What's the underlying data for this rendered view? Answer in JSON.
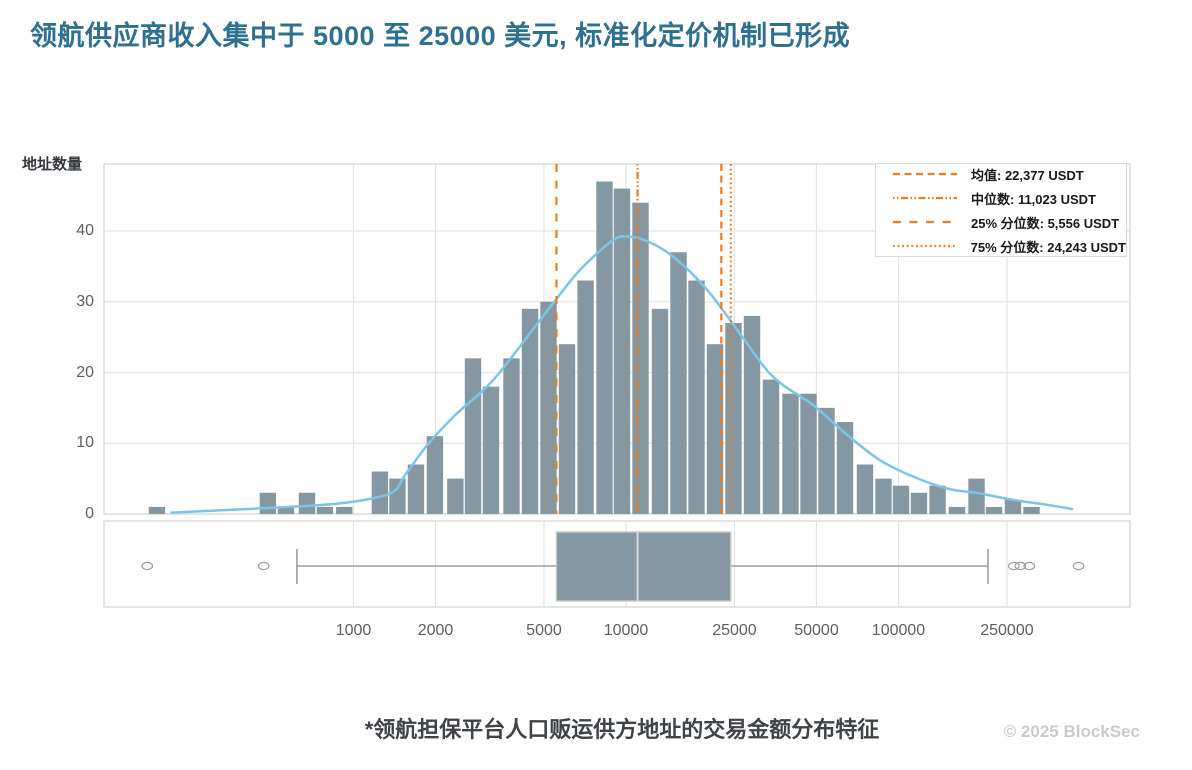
{
  "title": "领航供应商收入集中于 5000 至 25000 美元, 标准化定价机制已形成",
  "footer": {
    "note": "*领航担保平台人口贩运供方地址的交易金额分布特征",
    "copyright": "© 2025 BlockSec"
  },
  "colors": {
    "title": "#2E7090",
    "bar": "#8598A1",
    "kde": "#7CC4E6",
    "accent": "#EE7C1E",
    "grid": "#E4E4E4",
    "border": "#D9D9D9",
    "tick": "#5B5F63",
    "whisker": "#9AA0A3",
    "box_border": "#C9C9C9",
    "median_line": "#D9D9D9",
    "footnote": "#3F4347",
    "muted": "#C7CBCF"
  },
  "chart_data": {
    "type": "bar",
    "subtype": "histogram-with-kde-and-boxplot",
    "title": "领航供应商收入集中于 5000 至 25000 美元, 标准化定价机制已形成",
    "xlabel": "",
    "ylabel": "地址数量",
    "x_scale": "log",
    "xlim": [
      120,
      710000
    ],
    "ylim": [
      0,
      49.5
    ],
    "grid": true,
    "legend_position": "upper right",
    "x_ticks": [
      1000,
      2000,
      5000,
      10000,
      25000,
      50000,
      100000,
      250000
    ],
    "y_ticks": [
      0,
      10,
      20,
      30,
      40
    ],
    "bins": [
      {
        "usd": 190,
        "count": 1
      },
      {
        "usd": 485,
        "count": 3
      },
      {
        "usd": 565,
        "count": 1
      },
      {
        "usd": 675,
        "count": 3
      },
      {
        "usd": 785,
        "count": 1
      },
      {
        "usd": 925,
        "count": 1
      },
      {
        "usd": 1250,
        "count": 6
      },
      {
        "usd": 1450,
        "count": 5
      },
      {
        "usd": 1695,
        "count": 7
      },
      {
        "usd": 1990,
        "count": 11
      },
      {
        "usd": 2365,
        "count": 5
      },
      {
        "usd": 2745,
        "count": 22
      },
      {
        "usd": 3195,
        "count": 18
      },
      {
        "usd": 3800,
        "count": 22
      },
      {
        "usd": 4445,
        "count": 29
      },
      {
        "usd": 5195,
        "count": 30
      },
      {
        "usd": 6075,
        "count": 24
      },
      {
        "usd": 7105,
        "count": 33
      },
      {
        "usd": 8340,
        "count": 47
      },
      {
        "usd": 9665,
        "count": 46
      },
      {
        "usd": 11305,
        "count": 44
      },
      {
        "usd": 13325,
        "count": 29
      },
      {
        "usd": 15585,
        "count": 37
      },
      {
        "usd": 18145,
        "count": 33
      },
      {
        "usd": 21215,
        "count": 24
      },
      {
        "usd": 24800,
        "count": 27
      },
      {
        "usd": 29000,
        "count": 28
      },
      {
        "usd": 34050,
        "count": 19
      },
      {
        "usd": 40150,
        "count": 17
      },
      {
        "usd": 46740,
        "count": 17
      },
      {
        "usd": 54425,
        "count": 15
      },
      {
        "usd": 63640,
        "count": 13
      },
      {
        "usd": 75350,
        "count": 7
      },
      {
        "usd": 88080,
        "count": 5
      },
      {
        "usd": 102140,
        "count": 4
      },
      {
        "usd": 118900,
        "count": 3
      },
      {
        "usd": 139060,
        "count": 4
      },
      {
        "usd": 163965,
        "count": 1
      },
      {
        "usd": 193330,
        "count": 5
      },
      {
        "usd": 224130,
        "count": 1
      },
      {
        "usd": 263150,
        "count": 2
      },
      {
        "usd": 307670,
        "count": 1
      }
    ],
    "kde": [
      [
        215,
        0.2
      ],
      [
        455,
        0.8
      ],
      [
        890,
        1.5
      ],
      [
        1360,
        2.9
      ],
      [
        1545,
        5.5
      ],
      [
        1870,
        9.8
      ],
      [
        2365,
        14.0
      ],
      [
        3250,
        18.9
      ],
      [
        4835,
        27.4
      ],
      [
        5535,
        30.3
      ],
      [
        6780,
        34.5
      ],
      [
        8960,
        38.7
      ],
      [
        10200,
        39.2
      ],
      [
        11900,
        38.6
      ],
      [
        14875,
        36.4
      ],
      [
        19825,
        31.7
      ],
      [
        26200,
        25.5
      ],
      [
        34625,
        19.4
      ],
      [
        48550,
        15.4
      ],
      [
        64715,
        11.2
      ],
      [
        85505,
        7.6
      ],
      [
        113055,
        5.3
      ],
      [
        150660,
        3.6
      ],
      [
        199155,
        2.9
      ],
      [
        263150,
        2.0
      ],
      [
        350750,
        1.3
      ],
      [
        433200,
        0.7
      ]
    ],
    "stat_lines": [
      {
        "key": "mean",
        "label": "均值: 22,377 USDT",
        "usd": 22377,
        "dash": "7 4.5"
      },
      {
        "key": "median",
        "label": "中位数: 11,023 USDT",
        "usd": 11023,
        "dash": "1.5 2.5 1.5 2.5 7 2.5"
      },
      {
        "key": "q1",
        "label": "25% 分位数: 5,556 USDT",
        "usd": 5556,
        "dash": "8 8.5"
      },
      {
        "key": "q3",
        "label": "75% 分位数: 24,243 USDT",
        "usd": 24243,
        "dash": "1.8 2.8"
      }
    ],
    "boxplot": {
      "q1": 5556,
      "median": 11023,
      "q3": 24243,
      "whisker_low": 620,
      "whisker_high": 213000,
      "outliers": [
        175,
        468,
        265000,
        280000,
        302000,
        458000
      ]
    }
  }
}
